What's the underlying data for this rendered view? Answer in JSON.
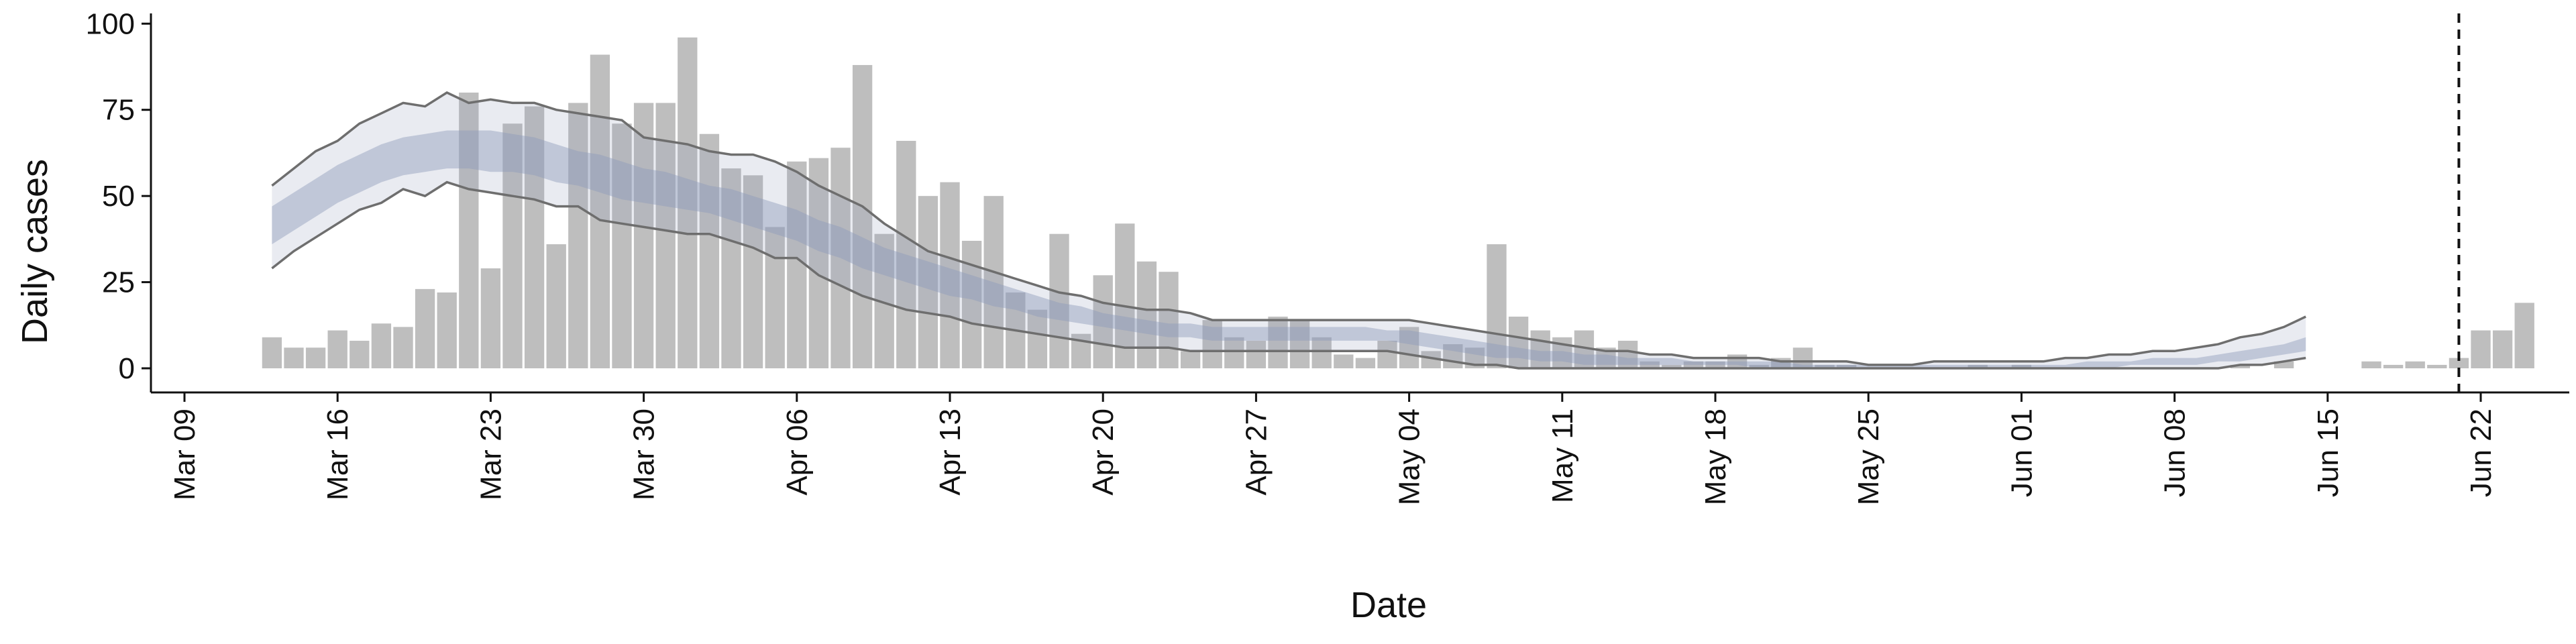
{
  "chart_data": {
    "type": "bar",
    "xlabel": "Date",
    "ylabel": "Daily cases",
    "x_start": "2020-03-13",
    "ylim": [
      -7,
      102
    ],
    "yticks": [
      0,
      25,
      50,
      75,
      100
    ],
    "xticks": [
      {
        "date": "2020-03-09",
        "label": "Mar 09"
      },
      {
        "date": "2020-03-16",
        "label": "Mar 16"
      },
      {
        "date": "2020-03-23",
        "label": "Mar 23"
      },
      {
        "date": "2020-03-30",
        "label": "Mar 30"
      },
      {
        "date": "2020-04-06",
        "label": "Apr 06"
      },
      {
        "date": "2020-04-13",
        "label": "Apr 13"
      },
      {
        "date": "2020-04-20",
        "label": "Apr 20"
      },
      {
        "date": "2020-04-27",
        "label": "Apr 27"
      },
      {
        "date": "2020-05-04",
        "label": "May 04"
      },
      {
        "date": "2020-05-11",
        "label": "May 11"
      },
      {
        "date": "2020-05-18",
        "label": "May 18"
      },
      {
        "date": "2020-05-25",
        "label": "May 25"
      },
      {
        "date": "2020-06-01",
        "label": "Jun 01"
      },
      {
        "date": "2020-06-08",
        "label": "Jun 08"
      },
      {
        "date": "2020-06-15",
        "label": "Jun 15"
      },
      {
        "date": "2020-06-22",
        "label": "Jun 22"
      }
    ],
    "grid": false,
    "legend": "none",
    "daily_cases": [
      9,
      6,
      6,
      11,
      8,
      13,
      12,
      23,
      22,
      80,
      29,
      71,
      76,
      36,
      77,
      91,
      71,
      77,
      77,
      96,
      68,
      58,
      56,
      41,
      60,
      61,
      64,
      88,
      39,
      66,
      50,
      54,
      37,
      50,
      22,
      17,
      39,
      10,
      27,
      42,
      31,
      28,
      5,
      14,
      9,
      8,
      15,
      14,
      9,
      4,
      3,
      8,
      12,
      5,
      7,
      6,
      36,
      15,
      11,
      9,
      11,
      6,
      8,
      2,
      1,
      2,
      2,
      4,
      1,
      3,
      6,
      1,
      1,
      0,
      0,
      0,
      0,
      0,
      1,
      0,
      1,
      0,
      0,
      0,
      0,
      0,
      0,
      0,
      0,
      0,
      1,
      0,
      2,
      0,
      0,
      0,
      2,
      1,
      2,
      1,
      3,
      11,
      11,
      19
    ],
    "model_fit": {
      "outer_upper": [
        53,
        58,
        63,
        66,
        71,
        74,
        77,
        76,
        80,
        77,
        78,
        77,
        77,
        75,
        74,
        73,
        72,
        67,
        66,
        65,
        63,
        62,
        62,
        60,
        57,
        53,
        50,
        47,
        42,
        38,
        34,
        32,
        30,
        28,
        26,
        24,
        22,
        21,
        19,
        18,
        17,
        17,
        16,
        14,
        14,
        14,
        14,
        14,
        14,
        14,
        14,
        14,
        14,
        13,
        12,
        11,
        10,
        9,
        8,
        7,
        6,
        5,
        5,
        4,
        4,
        3,
        3,
        3,
        3,
        2,
        2,
        2,
        2,
        1,
        1,
        1,
        2,
        2,
        2,
        2,
        2,
        2,
        3,
        3,
        4,
        4,
        5,
        5,
        6,
        7,
        9,
        10,
        12,
        15
      ],
      "outer_lower": [
        29,
        34,
        38,
        42,
        46,
        48,
        52,
        50,
        54,
        52,
        51,
        50,
        49,
        47,
        47,
        43,
        42,
        41,
        40,
        39,
        39,
        37,
        35,
        32,
        32,
        27,
        24,
        21,
        19,
        17,
        16,
        15,
        13,
        12,
        11,
        10,
        9,
        8,
        7,
        6,
        6,
        6,
        5,
        5,
        5,
        5,
        5,
        5,
        5,
        5,
        5,
        5,
        4,
        3,
        2,
        1,
        1,
        0,
        0,
        0,
        0,
        0,
        0,
        0,
        0,
        0,
        0,
        0,
        0,
        0,
        0,
        0,
        0,
        0,
        0,
        0,
        0,
        0,
        0,
        0,
        0,
        0,
        0,
        0,
        0,
        0,
        0,
        0,
        0,
        0,
        1,
        1,
        2,
        3
      ],
      "inner_upper": [
        47,
        51,
        55,
        59,
        62,
        65,
        67,
        68,
        69,
        69,
        69,
        68,
        67,
        65,
        63,
        62,
        60,
        58,
        57,
        55,
        53,
        52,
        50,
        48,
        46,
        43,
        41,
        38,
        35,
        33,
        31,
        29,
        27,
        25,
        23,
        21,
        19,
        18,
        16,
        15,
        14,
        13,
        13,
        12,
        12,
        12,
        12,
        12,
        12,
        12,
        12,
        11,
        11,
        10,
        9,
        8,
        7,
        6,
        5,
        5,
        4,
        4,
        3,
        3,
        3,
        2,
        2,
        2,
        2,
        2,
        1,
        1,
        1,
        1,
        1,
        1,
        1,
        1,
        1,
        1,
        1,
        1,
        1,
        2,
        2,
        2,
        3,
        3,
        3,
        4,
        5,
        6,
        7,
        9
      ],
      "inner_lower": [
        36,
        40,
        44,
        48,
        51,
        54,
        56,
        57,
        58,
        58,
        57,
        57,
        56,
        54,
        53,
        51,
        49,
        48,
        47,
        46,
        45,
        43,
        41,
        39,
        37,
        34,
        32,
        29,
        27,
        25,
        23,
        21,
        20,
        18,
        17,
        15,
        14,
        13,
        12,
        11,
        10,
        9,
        9,
        8,
        8,
        8,
        8,
        8,
        8,
        8,
        8,
        8,
        7,
        6,
        5,
        4,
        3,
        3,
        2,
        2,
        1,
        1,
        1,
        1,
        1,
        1,
        1,
        1,
        0,
        0,
        0,
        0,
        0,
        0,
        0,
        0,
        0,
        0,
        0,
        0,
        0,
        0,
        0,
        0,
        0,
        1,
        1,
        1,
        1,
        2,
        2,
        3,
        4,
        5
      ],
      "color": "#8f9bbb"
    },
    "bar_color": "#bebebe",
    "line_color": "#6e6e6e",
    "forecast_marker_date": "2020-06-21"
  }
}
